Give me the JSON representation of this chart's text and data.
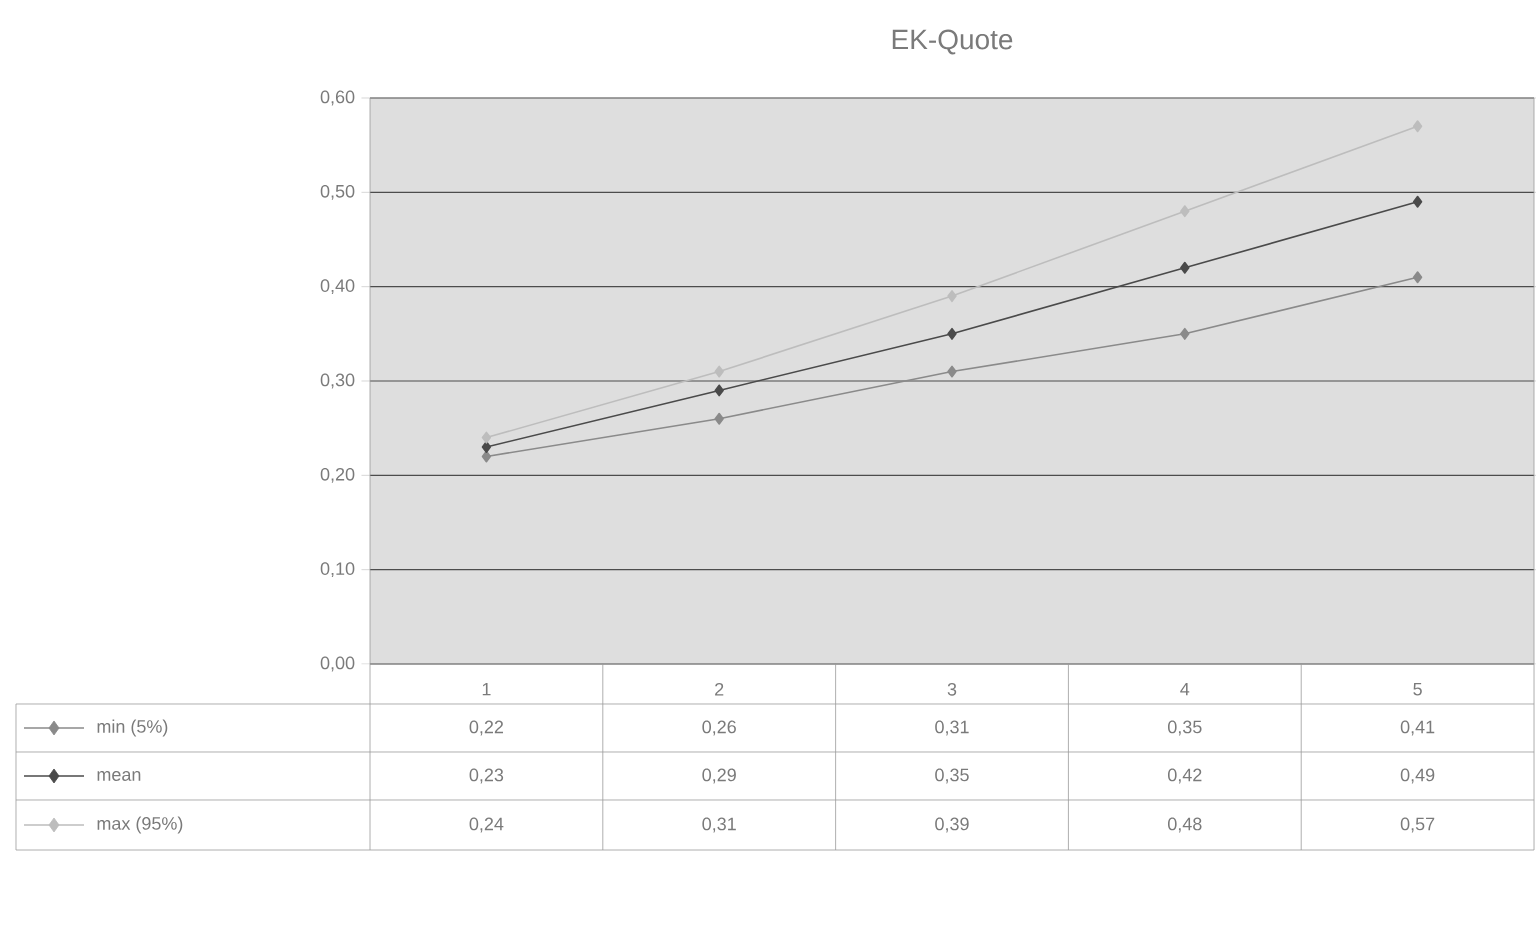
{
  "chart_data": {
    "type": "line",
    "title": "EK-Quote",
    "categories": [
      "1",
      "2",
      "3",
      "4",
      "5"
    ],
    "series": [
      {
        "name": "min (5%)",
        "color": "#8a8a8a",
        "values": [
          0.22,
          0.26,
          0.31,
          0.35,
          0.41
        ],
        "value_labels": [
          "0,22",
          "0,26",
          "0,31",
          "0,35",
          "0,41"
        ]
      },
      {
        "name": "mean",
        "color": "#4a4a4a",
        "values": [
          0.23,
          0.29,
          0.35,
          0.42,
          0.49
        ],
        "value_labels": [
          "0,23",
          "0,29",
          "0,35",
          "0,42",
          "0,49"
        ]
      },
      {
        "name": "max (95%)",
        "color": "#bdbdbd",
        "values": [
          0.24,
          0.31,
          0.39,
          0.48,
          0.57
        ],
        "value_labels": [
          "0,24",
          "0,31",
          "0,39",
          "0,48",
          "0,57"
        ]
      }
    ],
    "ylim": [
      0,
      0.6
    ],
    "yticks": [
      {
        "value": 0,
        "label": "0,00"
      },
      {
        "value": 0.1,
        "label": "0,10"
      },
      {
        "value": 0.2,
        "label": "0,20"
      },
      {
        "value": 0.3,
        "label": "0,30"
      },
      {
        "value": 0.4,
        "label": "0,40"
      },
      {
        "value": 0.5,
        "label": "0,50"
      },
      {
        "value": 0.6,
        "label": "0,60"
      }
    ],
    "grid": "y",
    "marker": "diamond",
    "line_style": "solid",
    "legend": "bottom"
  }
}
